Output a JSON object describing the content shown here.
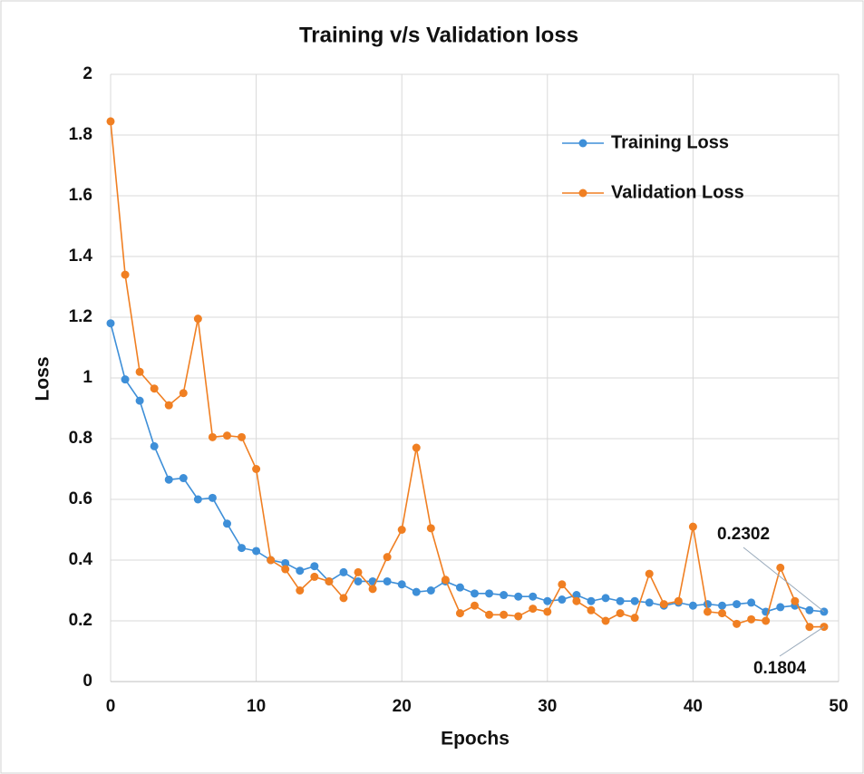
{
  "chart_data": {
    "type": "line",
    "title": "Training v/s Validation loss",
    "x_label": "Epochs",
    "y_label": "Loss",
    "x": [
      0,
      1,
      2,
      3,
      4,
      5,
      6,
      7,
      8,
      9,
      10,
      11,
      12,
      13,
      14,
      15,
      16,
      17,
      18,
      19,
      20,
      21,
      22,
      23,
      24,
      25,
      26,
      27,
      28,
      29,
      30,
      31,
      32,
      33,
      34,
      35,
      36,
      37,
      38,
      39,
      40,
      41,
      42,
      43,
      44,
      45,
      46,
      47,
      48,
      49
    ],
    "series": [
      {
        "name": "Training Loss",
        "color": "#3e8fd8",
        "values": [
          1.18,
          0.995,
          0.925,
          0.775,
          0.665,
          0.67,
          0.6,
          0.605,
          0.52,
          0.44,
          0.43,
          0.4,
          0.39,
          0.365,
          0.38,
          0.33,
          0.36,
          0.33,
          0.33,
          0.33,
          0.32,
          0.295,
          0.3,
          0.33,
          0.31,
          0.29,
          0.29,
          0.285,
          0.28,
          0.28,
          0.265,
          0.27,
          0.285,
          0.265,
          0.275,
          0.265,
          0.265,
          0.26,
          0.25,
          0.26,
          0.25,
          0.255,
          0.25,
          0.255,
          0.26,
          0.23,
          0.245,
          0.25,
          0.235,
          0.2302
        ]
      },
      {
        "name": "Validation Loss",
        "color": "#f07f22",
        "values": [
          1.845,
          1.34,
          1.02,
          0.965,
          0.91,
          0.95,
          1.195,
          0.805,
          0.81,
          0.805,
          0.7,
          0.4,
          0.37,
          0.3,
          0.345,
          0.33,
          0.275,
          0.36,
          0.305,
          0.41,
          0.5,
          0.77,
          0.505,
          0.335,
          0.225,
          0.25,
          0.22,
          0.22,
          0.215,
          0.24,
          0.23,
          0.32,
          0.265,
          0.235,
          0.2,
          0.225,
          0.21,
          0.355,
          0.255,
          0.265,
          0.51,
          0.23,
          0.225,
          0.19,
          0.205,
          0.2,
          0.375,
          0.265,
          0.18,
          0.1804
        ]
      }
    ],
    "annotations": [
      "0.2302",
      "0.1804"
    ],
    "xlim": [
      0,
      50
    ],
    "xticks": [
      0,
      10,
      20,
      30,
      40,
      50
    ],
    "ylim": [
      0,
      2
    ],
    "yticks": [
      0,
      0.2,
      0.4,
      0.6,
      0.8,
      1,
      1.2,
      1.4,
      1.6,
      1.8,
      2
    ],
    "grid": true,
    "legend": "upper right"
  }
}
